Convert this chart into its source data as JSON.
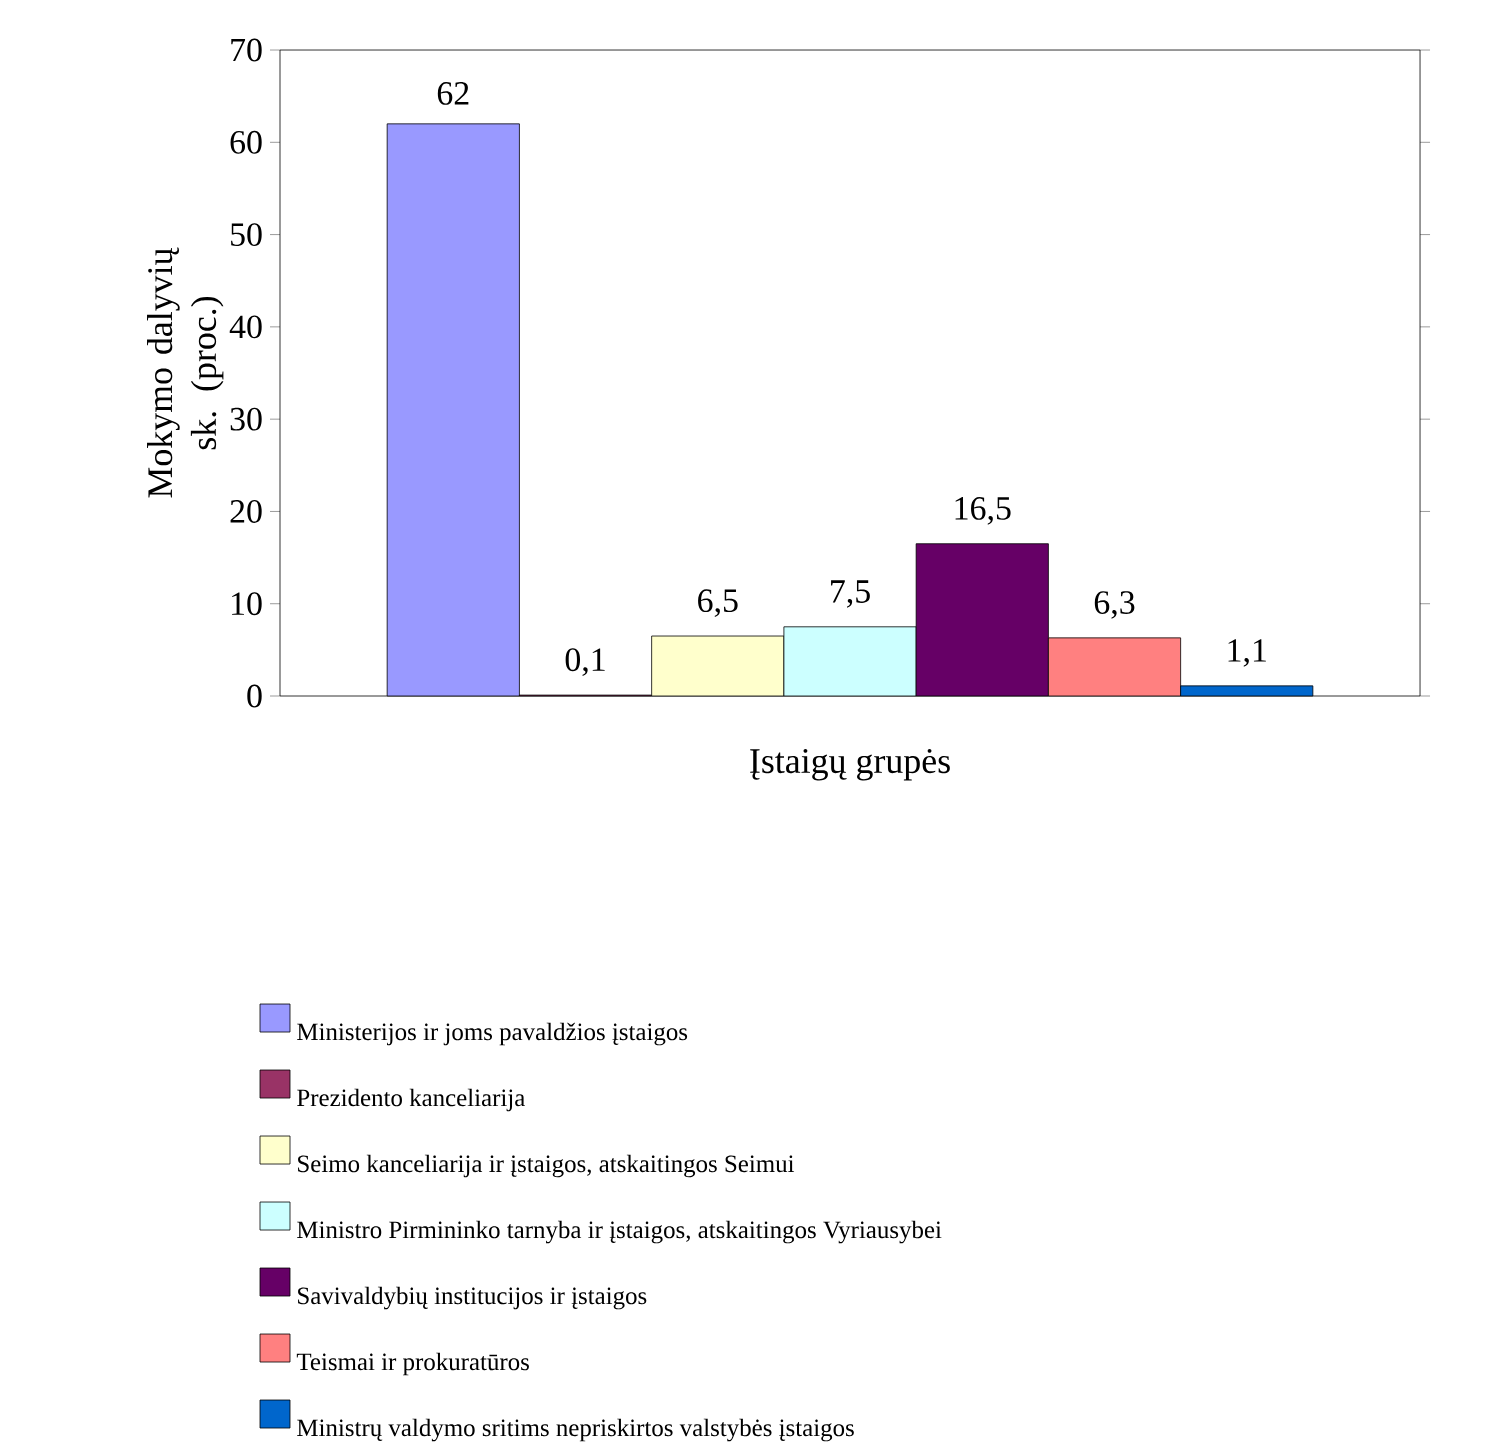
{
  "chart_data": {
    "type": "bar",
    "xlabel": "Įstaigų grupės",
    "ylabel": "Mokymo dalyvių sk. (proc.)",
    "categories": [
      null
    ],
    "ylim": [
      0,
      70
    ],
    "yticks": [
      0,
      10,
      20,
      30,
      40,
      50,
      60,
      70
    ],
    "legend": "bottom",
    "series": [
      {
        "name": "Ministerijos ir joms pavaldžios įstaigos",
        "color": "#9999ff",
        "values": [
          62
        ],
        "value_labels": [
          "62"
        ]
      },
      {
        "name": "Prezidento kanceliarija",
        "color": "#993366",
        "values": [
          0.1
        ],
        "value_labels": [
          "0,1"
        ]
      },
      {
        "name": "Seimo kanceliarija ir įstaigos, atskaitingos Seimui",
        "color": "#ffffcc",
        "values": [
          6.5
        ],
        "value_labels": [
          "6,5"
        ]
      },
      {
        "name": "Ministro Pirmininko tarnyba ir įstaigos, atskaitingos Vyriausybei",
        "color": "#ccffff",
        "values": [
          7.5
        ],
        "value_labels": [
          "7,5"
        ]
      },
      {
        "name": "Savivaldybių institucijos ir įstaigos",
        "color": "#660066",
        "values": [
          16.5
        ],
        "value_labels": [
          "16,5"
        ]
      },
      {
        "name": "Teismai ir prokuratūros",
        "color": "#ff8080",
        "values": [
          6.3
        ],
        "value_labels": [
          "6,3"
        ]
      },
      {
        "name": "Ministrų valdymo sritims nepriskirtos valstybės įstaigos",
        "color": "#0066cc",
        "values": [
          1.1
        ],
        "value_labels": [
          "1,1"
        ]
      }
    ]
  }
}
